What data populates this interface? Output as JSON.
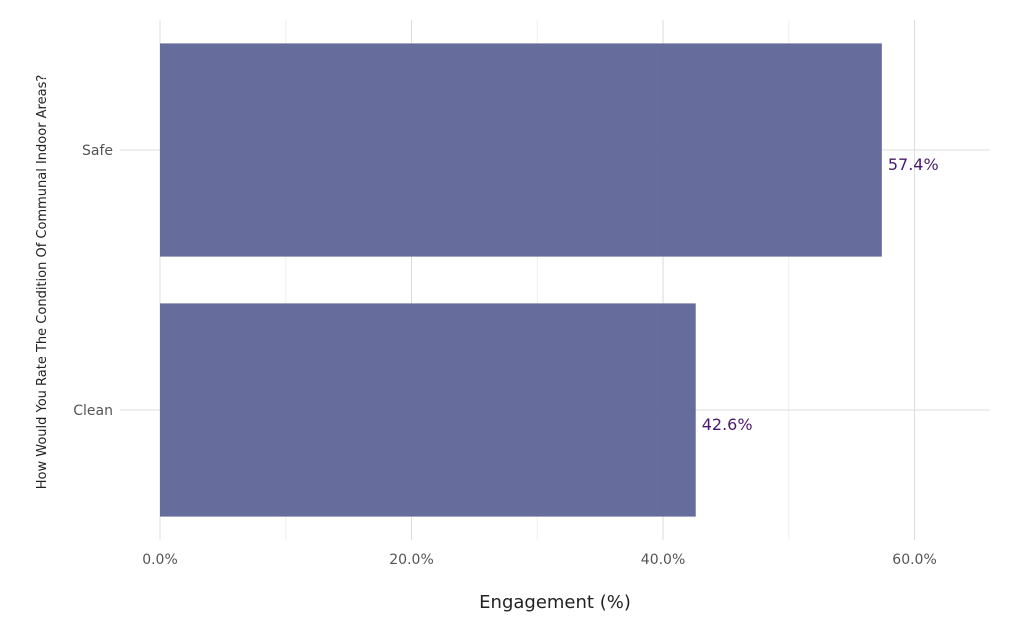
{
  "chart_data": {
    "type": "bar",
    "orientation": "horizontal",
    "categories": [
      "Safe",
      "Clean"
    ],
    "values": [
      57.4,
      42.6
    ],
    "value_labels": [
      "57.4%",
      "42.6%"
    ],
    "title": "",
    "xlabel": "Engagement (%)",
    "ylabel": "How Would You Rate The Condition Of Communal Indoor Areas?",
    "xlim": [
      0,
      66
    ],
    "x_ticks": [
      0,
      20,
      40,
      60
    ],
    "x_tick_labels": [
      "0.0%",
      "20.0%",
      "40.0%",
      "60.0%"
    ],
    "grid": true,
    "legend": "none",
    "bar_color": "#5e6496",
    "label_color": "#4b1a6b",
    "grid_color": "#e5e5e5"
  }
}
